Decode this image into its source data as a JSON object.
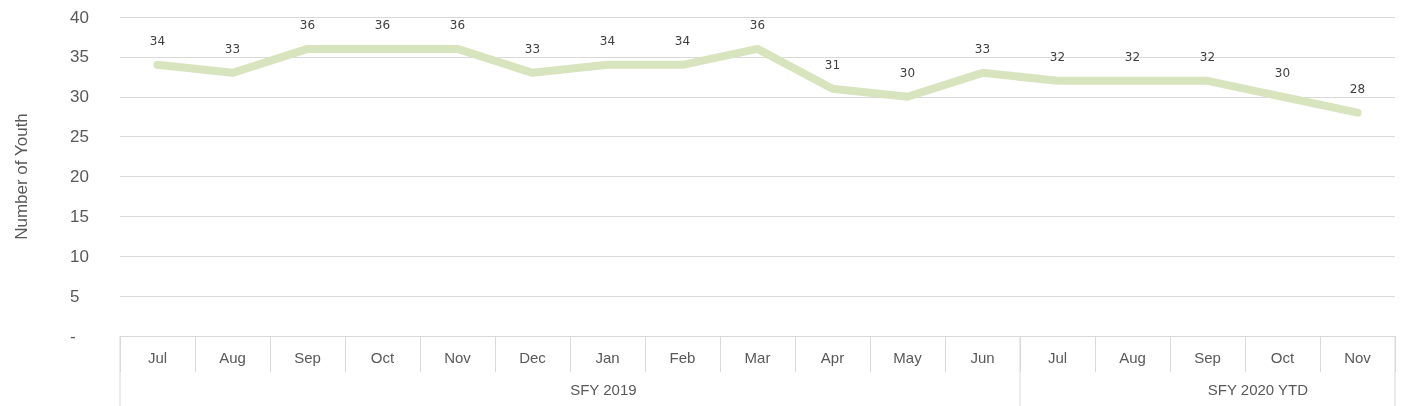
{
  "chart_data": {
    "type": "line",
    "ylabel": "Number of Youth",
    "categories": [
      "Jul",
      "Aug",
      "Sep",
      "Oct",
      "Nov",
      "Dec",
      "Jan",
      "Feb",
      "Mar",
      "Apr",
      "May",
      "Jun",
      "Jul",
      "Aug",
      "Sep",
      "Oct",
      "Nov"
    ],
    "values": [
      34,
      33,
      36,
      36,
      36,
      33,
      34,
      34,
      36,
      31,
      30,
      33,
      32,
      32,
      32,
      30,
      28
    ],
    "color": "#d7e4bd",
    "ylim": [
      0,
      40
    ],
    "yticks": [
      {
        "value": 0,
        "label": "-"
      },
      5,
      10,
      15,
      20,
      25,
      30,
      35,
      40
    ],
    "grid": "y",
    "data_labels": true,
    "marker": "none",
    "annotations": [
      "SFY 2019",
      "SFY 2020 YTD"
    ]
  }
}
